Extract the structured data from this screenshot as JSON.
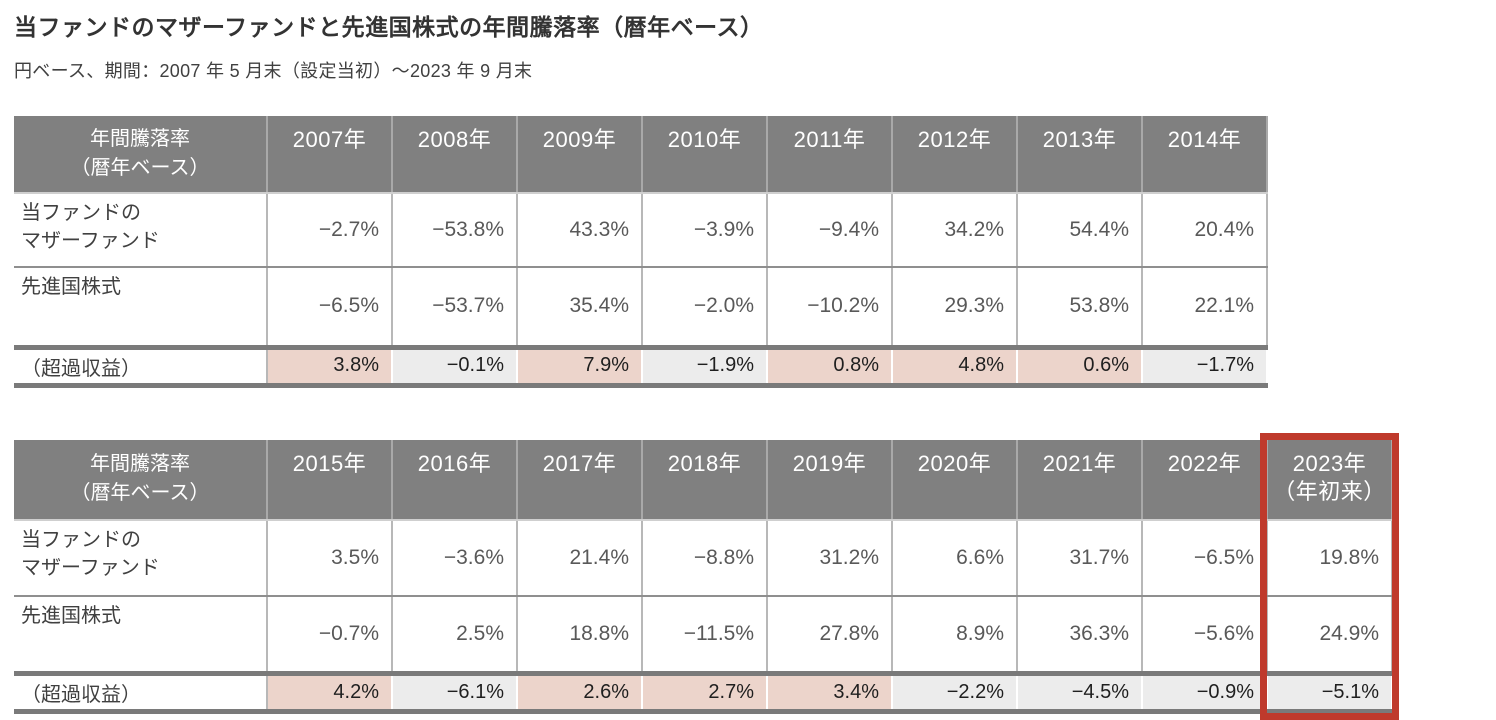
{
  "page": {
    "title": "当ファンドのマザーファンドと先進国株式の年間騰落率（暦年ベース）",
    "subtitle": "円ベース、期間：2007 年 5 月末（設定当初）～2023 年 9 月末"
  },
  "colors": {
    "header_bg": "#808080",
    "header_text": "#ffffff",
    "excess_positive_bg": "#ecd4cb",
    "excess_negative_bg": "#ececec",
    "highlight_border": "#bf3a2c",
    "thick_rule": "#7a7a7a"
  },
  "tables": [
    {
      "corner_label": "年間騰落率\n（暦年ベース）",
      "years": [
        "2007年",
        "2008年",
        "2009年",
        "2010年",
        "2011年",
        "2012年",
        "2013年",
        "2014年"
      ],
      "rows": [
        {
          "label": "当ファンドの\nマザーファンド",
          "values": [
            "−2.7%",
            "−53.8%",
            "43.3%",
            "−3.9%",
            "−9.4%",
            "34.2%",
            "54.4%",
            "20.4%"
          ],
          "excess": false
        },
        {
          "label": "先進国株式",
          "values": [
            "−6.5%",
            "−53.7%",
            "35.4%",
            "−2.0%",
            "−10.2%",
            "29.3%",
            "53.8%",
            "22.1%"
          ],
          "excess": false
        },
        {
          "label": "（超過収益）",
          "values": [
            "3.8%",
            "−0.1%",
            "7.9%",
            "−1.9%",
            "0.8%",
            "4.8%",
            "0.6%",
            "−1.7%"
          ],
          "excess": true
        }
      ],
      "highlight_last_column": false
    },
    {
      "corner_label": "年間騰落率\n（暦年ベース）",
      "years": [
        "2015年",
        "2016年",
        "2017年",
        "2018年",
        "2019年",
        "2020年",
        "2021年",
        "2022年",
        "2023年\n（年初来）"
      ],
      "rows": [
        {
          "label": "当ファンドの\nマザーファンド",
          "values": [
            "3.5%",
            "−3.6%",
            "21.4%",
            "−8.8%",
            "31.2%",
            "6.6%",
            "31.7%",
            "−6.5%",
            "19.8%"
          ],
          "excess": false
        },
        {
          "label": "先進国株式",
          "values": [
            "−0.7%",
            "2.5%",
            "18.8%",
            "−11.5%",
            "27.8%",
            "8.9%",
            "36.3%",
            "−5.6%",
            "24.9%"
          ],
          "excess": false
        },
        {
          "label": "（超過収益）",
          "values": [
            "4.2%",
            "−6.1%",
            "2.6%",
            "2.7%",
            "3.4%",
            "−2.2%",
            "−4.5%",
            "−0.9%",
            "−5.1%"
          ],
          "excess": true
        }
      ],
      "highlight_last_column": true
    }
  ]
}
